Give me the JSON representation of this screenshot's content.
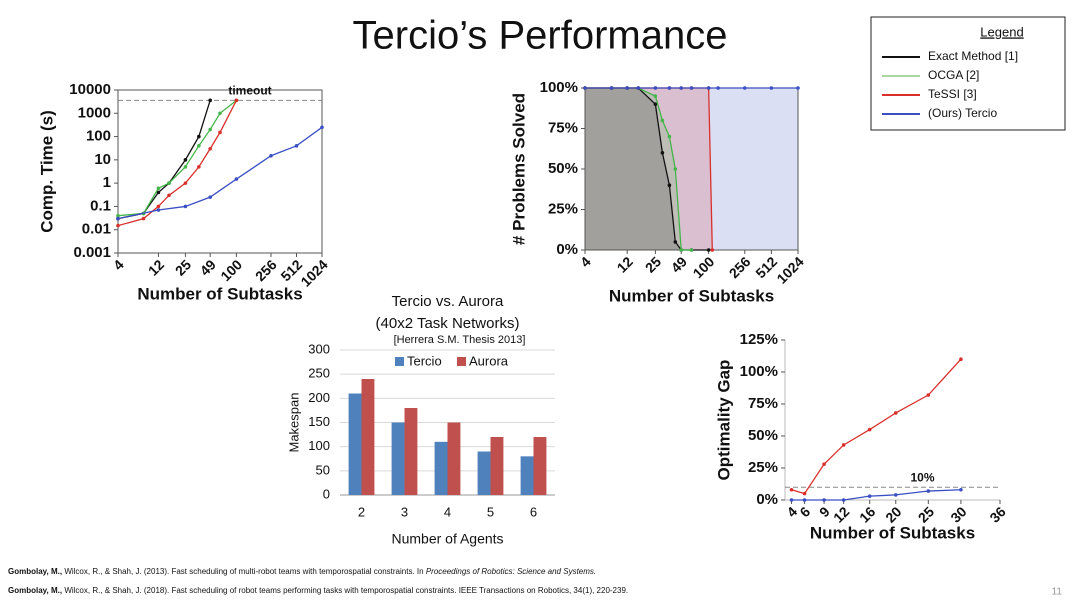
{
  "slide": {
    "title": "Tercio’s Performance",
    "page_number": "11"
  },
  "legend": {
    "title": "Legend",
    "entries": [
      {
        "name": "Exact Method [1]",
        "color": "#111111"
      },
      {
        "name": "OCGA [2]",
        "color": "#a8d8a0"
      },
      {
        "name": "TeSSI [3]",
        "color": "#d9302c"
      },
      {
        "name": "(Ours) Tercio",
        "color": "#3a4fc4"
      }
    ]
  },
  "chart_data": [
    {
      "type": "line",
      "xlabel": "Number of Subtasks",
      "ylabel": "Comp. Time (s)",
      "xscale": "log",
      "yscale": "log",
      "xlim": [
        4,
        1024
      ],
      "ylim": [
        0.001,
        10000
      ],
      "xticks": [
        4,
        12,
        25,
        49,
        100,
        256,
        512,
        1024
      ],
      "yticks": [
        0.001,
        0.01,
        0.1,
        1,
        10,
        100,
        1000,
        10000
      ],
      "reference_line": {
        "y": 3600,
        "label": "timeout"
      },
      "series": [
        {
          "color": "#111111",
          "x": [
            4,
            8,
            12,
            16,
            25,
            36,
            49
          ],
          "values": [
            0.03,
            0.05,
            0.4,
            1,
            10,
            100,
            3600
          ]
        },
        {
          "color": "#45b649",
          "x": [
            4,
            8,
            12,
            16,
            25,
            36,
            49,
            64,
            100
          ],
          "values": [
            0.04,
            0.05,
            0.6,
            1,
            5,
            40,
            200,
            1000,
            3600
          ]
        },
        {
          "color": "#d9302c",
          "x": [
            4,
            8,
            12,
            16,
            25,
            36,
            49,
            64,
            100
          ],
          "values": [
            0.015,
            0.03,
            0.1,
            0.3,
            1,
            5,
            30,
            150,
            3600
          ]
        },
        {
          "color": "#3a4fc4",
          "x": [
            4,
            12,
            25,
            49,
            100,
            256,
            512,
            1024
          ],
          "values": [
            0.03,
            0.07,
            0.1,
            0.25,
            1.5,
            15,
            40,
            250
          ]
        }
      ]
    },
    {
      "type": "line",
      "xlabel": "Number of Subtasks",
      "ylabel": "# Problems Solved",
      "xscale": "log",
      "fill": true,
      "xlim": [
        4,
        1024
      ],
      "ylim": [
        0,
        100
      ],
      "xticks": [
        4,
        12,
        25,
        49,
        100,
        256,
        512,
        1024
      ],
      "yticks": [
        {
          "value": 0,
          "label": "0%"
        },
        {
          "value": 25,
          "label": "25%"
        },
        {
          "value": 50,
          "label": "50%"
        },
        {
          "value": 75,
          "label": "75%"
        },
        {
          "value": 100,
          "label": "100%"
        }
      ],
      "series": [
        {
          "color": "#111111",
          "x": [
            4,
            8,
            12,
            16,
            25,
            30,
            36,
            42,
            49,
            64,
            100
          ],
          "values": [
            100,
            100,
            100,
            100,
            90,
            60,
            40,
            5,
            0,
            0,
            0
          ]
        },
        {
          "color": "#45b649",
          "x": [
            4,
            8,
            12,
            16,
            25,
            30,
            36,
            42,
            49,
            64
          ],
          "values": [
            100,
            100,
            100,
            100,
            95,
            80,
            70,
            50,
            0,
            0
          ]
        },
        {
          "color": "#d9302c",
          "x": [
            4,
            8,
            12,
            16,
            25,
            36,
            49,
            64,
            100,
            110
          ],
          "values": [
            100,
            100,
            100,
            100,
            100,
            100,
            100,
            100,
            100,
            0
          ]
        },
        {
          "color": "#3a4fc4",
          "x": [
            4,
            8,
            12,
            16,
            25,
            36,
            49,
            64,
            100,
            128,
            256,
            512,
            1024
          ],
          "values": [
            100,
            100,
            100,
            100,
            100,
            100,
            100,
            100,
            100,
            100,
            100,
            100,
            100
          ]
        }
      ]
    },
    {
      "type": "bar",
      "title": "Tercio vs. Aurora",
      "subtitle": "(40x2 Task Networks)",
      "note": "[Herrera S.M. Thesis 2013]",
      "xlabel": "Number of Agents",
      "ylabel": "Makespan",
      "grid": true,
      "categories": [
        "2",
        "3",
        "4",
        "5",
        "6"
      ],
      "ylim": [
        0,
        300
      ],
      "yticks": [
        0,
        50,
        100,
        150,
        200,
        250,
        300
      ],
      "series": [
        {
          "name": "Tercio",
          "color": "#4f81bd",
          "values": [
            210,
            150,
            110,
            90,
            80
          ]
        },
        {
          "name": "Aurora",
          "color": "#c0504d",
          "values": [
            240,
            180,
            150,
            120,
            120
          ]
        }
      ]
    },
    {
      "type": "line",
      "xlabel": "Number of Subtasks",
      "ylabel": "Optimality Gap",
      "xlim": [
        3,
        36
      ],
      "ylim": [
        0,
        125
      ],
      "xticks": [
        4,
        6,
        9,
        12,
        16,
        20,
        25,
        30,
        36
      ],
      "yticks": [
        {
          "value": 0,
          "label": "0%"
        },
        {
          "value": 25,
          "label": "25%"
        },
        {
          "value": 50,
          "label": "50%"
        },
        {
          "value": 75,
          "label": "75%"
        },
        {
          "value": 100,
          "label": "100%"
        },
        {
          "value": 125,
          "label": "125%"
        }
      ],
      "reference_line": {
        "y": 10,
        "label": "10%"
      },
      "series": [
        {
          "color": "#d9302c",
          "x": [
            4,
            6,
            9,
            12,
            16,
            20,
            25,
            30
          ],
          "values": [
            8,
            5,
            28,
            43,
            55,
            68,
            82,
            110
          ]
        },
        {
          "color": "#3a4fc4",
          "x": [
            4,
            6,
            9,
            12,
            16,
            20,
            25,
            30
          ],
          "values": [
            0,
            0,
            0,
            0,
            3,
            4,
            7,
            8
          ]
        }
      ]
    }
  ],
  "references": [
    {
      "author": "Gombolay, M.,",
      "rest": "Wilcox, R., & Shah, J. (2013). Fast scheduling of multi-robot teams with temporospatial constraints. In",
      "venue": "Proceedings of Robotics: Science and Systems."
    },
    {
      "author": "Gombolay, M.,",
      "rest": "Wilcox, R., & Shah, J. (2018). Fast scheduling of robot teams performing tasks with temporospatial constraints. IEEE Transactions on Robotics, 34(1), 220-239."
    }
  ]
}
